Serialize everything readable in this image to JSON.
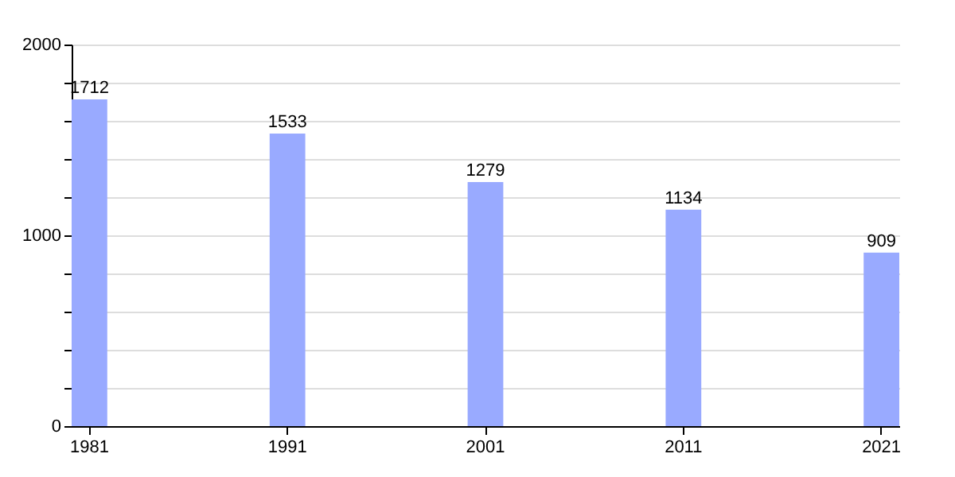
{
  "chart_data": {
    "type": "bar",
    "categories": [
      "1981",
      "1991",
      "2001",
      "2011",
      "2021"
    ],
    "values": [
      1712,
      1533,
      1279,
      1134,
      909
    ],
    "color": "#99aaff",
    "data_labels": true,
    "grid": "y",
    "ylim": [
      0,
      2000
    ],
    "yticks": [
      0,
      {
        "value": 200,
        "label": null
      },
      {
        "value": 400,
        "label": null
      },
      {
        "value": 600,
        "label": null
      },
      {
        "value": 800,
        "label": null
      },
      1000,
      {
        "value": 1200,
        "label": null
      },
      {
        "value": 1400,
        "label": null
      },
      {
        "value": 1600,
        "label": null
      },
      {
        "value": 1800,
        "label": null
      },
      2000
    ]
  }
}
